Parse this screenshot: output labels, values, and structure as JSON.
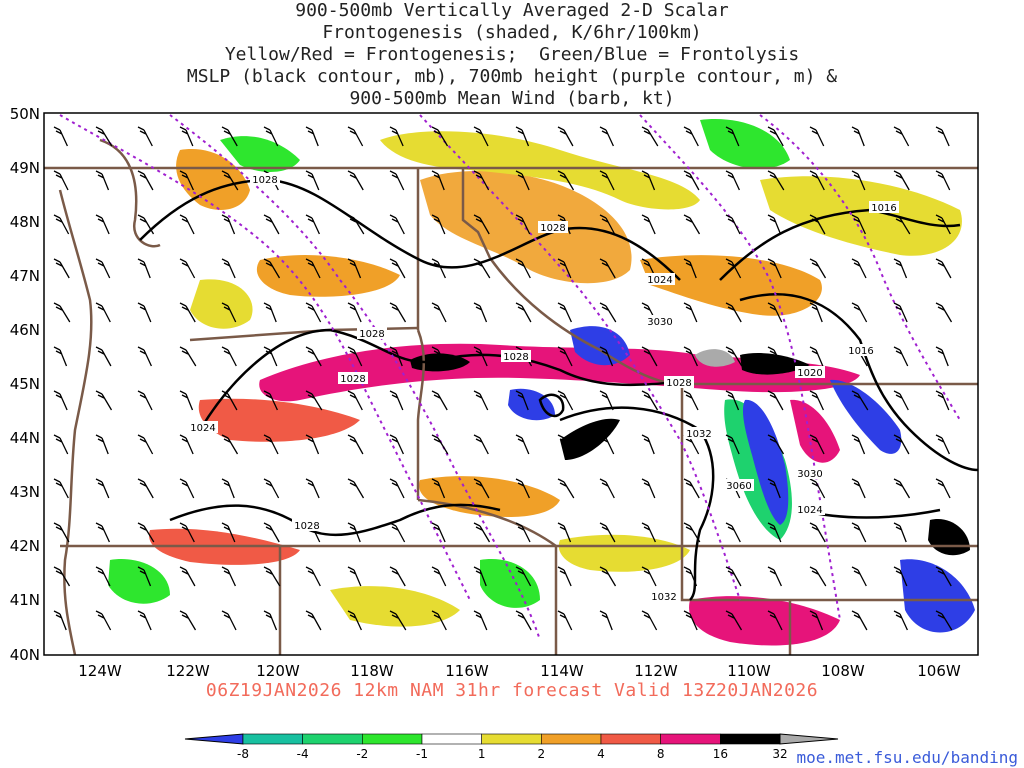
{
  "title_lines": [
    "900-500mb Vertically Averaged 2-D Scalar",
    "Frontogenesis (shaded, K/6hr/100km)",
    "Yellow/Red = Frontogenesis;  Green/Blue = Frontolysis",
    "MSLP (black contour, mb), 700mb height (purple contour, m) &",
    "900-500mb Mean Wind (barb, kt)"
  ],
  "lat_labels": [
    "50N",
    "49N",
    "48N",
    "47N",
    "46N",
    "45N",
    "44N",
    "43N",
    "42N",
    "41N",
    "40N"
  ],
  "lon_labels": [
    "124W",
    "122W",
    "120W",
    "118W",
    "116W",
    "114W",
    "112W",
    "110W",
    "108W",
    "106W"
  ],
  "contour_labels": {
    "mslp": [
      "1028",
      "1028",
      "1028",
      "1028",
      "1028",
      "1024",
      "1028",
      "1024",
      "1028",
      "1032",
      "1032",
      "1024",
      "1020",
      "1016",
      "1016"
    ],
    "height_700": [
      "3030",
      "3030",
      "3060"
    ]
  },
  "valid_line": "06Z19JAN2026 12km NAM 31hr forecast Valid 13Z20JAN2026",
  "colorbar": {
    "ticks": [
      "-8",
      "-4",
      "-2",
      "-1",
      "1",
      "2",
      "4",
      "8",
      "16",
      "32"
    ],
    "colors": [
      "#2e3ee6",
      "#18c0a0",
      "#1ed26e",
      "#2ee62e",
      "#ffffff",
      "#e6dc32",
      "#f0a028",
      "#f05a46",
      "#e6147a",
      "#000000",
      "#aaaaaa"
    ]
  },
  "credit": "moe.met.fsu.edu/banding",
  "colors": {
    "border": "#7a5a48",
    "mslp": "#000000",
    "height": "#a020d0",
    "title": "#222222",
    "valid": "#f26b5b",
    "credit": "#3a5bd9"
  }
}
